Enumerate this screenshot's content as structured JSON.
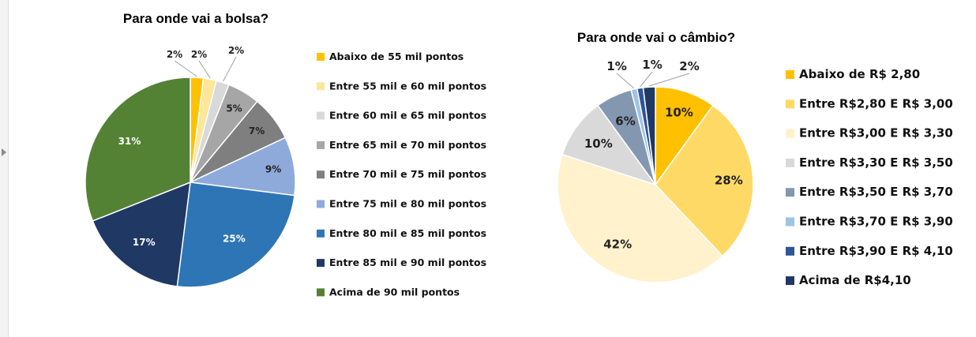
{
  "chart_data": [
    {
      "type": "pie",
      "title": "Para onde vai a bolsa?",
      "legend_position": "right",
      "slices": [
        {
          "label": "Abaixo de 55 mil pontos",
          "value": 2,
          "display": "2%",
          "color": "#ffc000"
        },
        {
          "label": "Entre 55 mil e 60 mil pontos",
          "value": 2,
          "display": "2%",
          "color": "#ffe699"
        },
        {
          "label": "Entre 60 mil e 65 mil pontos",
          "value": 2,
          "display": "2%",
          "color": "#d9d9d9"
        },
        {
          "label": "Entre 65 mil e 70 mil pontos",
          "value": 5,
          "display": "5%",
          "color": "#a6a6a6"
        },
        {
          "label": "Entre 70 mil e 75 mil pontos",
          "value": 7,
          "display": "7%",
          "color": "#7f7f7f"
        },
        {
          "label": "Entre 75 mil e 80 mil pontos",
          "value": 9,
          "display": "9%",
          "color": "#8eaadb"
        },
        {
          "label": "Entre 80 mil e 85 mil pontos",
          "value": 25,
          "display": "25%",
          "color": "#2e75b6"
        },
        {
          "label": "Entre 85 mil e 90 mil pontos",
          "value": 17,
          "display": "17%",
          "color": "#203864"
        },
        {
          "label": "Acima de 90 mil pontos",
          "value": 31,
          "display": "31%",
          "color": "#548235"
        }
      ]
    },
    {
      "type": "pie",
      "title": "Para onde vai o câmbio?",
      "legend_position": "right",
      "slices": [
        {
          "label": "Abaixo de R$ 2,80",
          "value": 10,
          "display": "10%",
          "color": "#ffc000"
        },
        {
          "label": "Entre R$2,80 E R$ 3,00",
          "value": 28,
          "display": "28%",
          "color": "#ffd966"
        },
        {
          "label": "Entre R$3,00 E R$ 3,30",
          "value": 42,
          "display": "42%",
          "color": "#fff2cc"
        },
        {
          "label": "Entre R$3,30 E R$ 3,50",
          "value": 10,
          "display": "10%",
          "color": "#d9d9d9"
        },
        {
          "label": "Entre R$3,50 E R$ 3,70",
          "value": 6,
          "display": "6%",
          "color": "#8497b0"
        },
        {
          "label": "Entre R$3,70 E R$ 3,90",
          "value": 1,
          "display": "1%",
          "color": "#9dc3e6"
        },
        {
          "label": "Entre R$3,90 E R$ 4,10",
          "value": 1,
          "display": "1%",
          "color": "#2f5597"
        },
        {
          "label": "Acima de R$4,10",
          "value": 2,
          "display": "2%",
          "color": "#1f3864"
        }
      ]
    }
  ]
}
